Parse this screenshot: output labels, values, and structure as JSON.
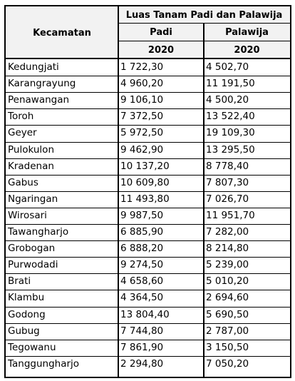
{
  "table": {
    "header_kecamatan": "Kecamatan",
    "header_group": "Luas Tanam Padi dan Palawija",
    "header_padi": "Padi",
    "header_palawija": "Palawija",
    "year_padi": "2020",
    "year_palawija": "2020",
    "rows": [
      {
        "kecamatan": "Kedungjati",
        "padi": "1 722,30",
        "palawija": "4 502,70"
      },
      {
        "kecamatan": "Karangrayung",
        "padi": "4 960,20",
        "palawija": "11 191,50"
      },
      {
        "kecamatan": "Penawangan",
        "padi": "9 106,10",
        "palawija": "4 500,20"
      },
      {
        "kecamatan": "Toroh",
        "padi": "7 372,50",
        "palawija": "13 522,40"
      },
      {
        "kecamatan": "Geyer",
        "padi": "5 972,50",
        "palawija": "19 109,30"
      },
      {
        "kecamatan": "Pulokulon",
        "padi": "9 462,90",
        "palawija": "13 295,50"
      },
      {
        "kecamatan": "Kradenan",
        "padi": "10 137,20",
        "palawija": "8 778,40"
      },
      {
        "kecamatan": "Gabus",
        "padi": "10 609,80",
        "palawija": "7 807,30"
      },
      {
        "kecamatan": "Ngaringan",
        "padi": "11 493,80",
        "palawija": "7 026,70"
      },
      {
        "kecamatan": "Wirosari",
        "padi": "9 987,50",
        "palawija": "11 951,70"
      },
      {
        "kecamatan": "Tawangharjo",
        "padi": "6 885,90",
        "palawija": "7 282,00"
      },
      {
        "kecamatan": "Grobogan",
        "padi": "6 888,20",
        "palawija": "8 214,80"
      },
      {
        "kecamatan": "Purwodadi",
        "padi": "9 274,50",
        "palawija": "5 239,00"
      },
      {
        "kecamatan": "Brati",
        "padi": "4 658,60",
        "palawija": "5 010,20"
      },
      {
        "kecamatan": "Klambu",
        "padi": "4 364,50",
        "palawija": "2 694,60"
      },
      {
        "kecamatan": "Godong",
        "padi": "13 804,40",
        "palawija": "5 690,50"
      },
      {
        "kecamatan": "Gubug",
        "padi": "7 744,80",
        "palawija": "2 787,00"
      },
      {
        "kecamatan": "Tegowanu",
        "padi": "7 861,90",
        "palawija": "3 150,50"
      },
      {
        "kecamatan": "Tanggungharjo",
        "padi": "2 294,80",
        "palawija": "7 050,20"
      }
    ]
  }
}
